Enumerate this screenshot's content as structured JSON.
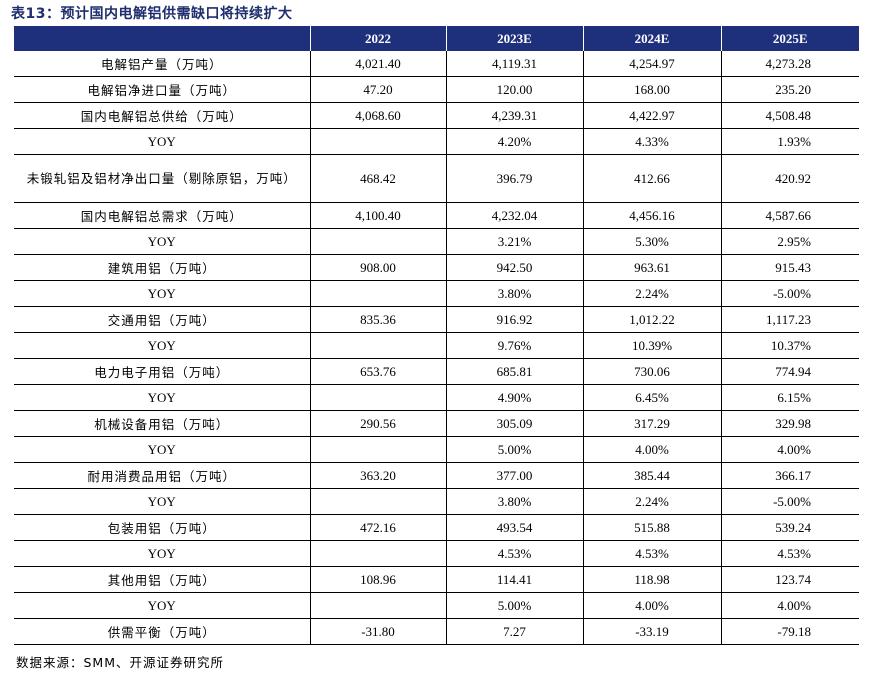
{
  "title": "表13：预计国内电解铝供需缺口将持续扩大",
  "table": {
    "headers": [
      "",
      "2022",
      "2023E",
      "2024E",
      "2025E"
    ],
    "rows": [
      [
        "电解铝产量（万吨）",
        "4,021.40",
        "4,119.31",
        "4,254.97",
        "4,273.28"
      ],
      [
        "电解铝净进口量（万吨）",
        "47.20",
        "120.00",
        "168.00",
        "235.20"
      ],
      [
        "国内电解铝总供给（万吨）",
        "4,068.60",
        "4,239.31",
        "4,422.97",
        "4,508.48"
      ],
      [
        "YOY",
        "",
        "4.20%",
        "4.33%",
        "1.93%"
      ],
      [
        "未锻轧铝及铝材净出口量（剔除原铝，万吨）",
        "468.42",
        "396.79",
        "412.66",
        "420.92"
      ],
      [
        "国内电解铝总需求（万吨）",
        "4,100.40",
        "4,232.04",
        "4,456.16",
        "4,587.66"
      ],
      [
        "YOY",
        "",
        "3.21%",
        "5.30%",
        "2.95%"
      ],
      [
        "建筑用铝（万吨）",
        "908.00",
        "942.50",
        "963.61",
        "915.43"
      ],
      [
        "YOY",
        "",
        "3.80%",
        "2.24%",
        "-5.00%"
      ],
      [
        "交通用铝（万吨）",
        "835.36",
        "916.92",
        "1,012.22",
        "1,117.23"
      ],
      [
        "YOY",
        "",
        "9.76%",
        "10.39%",
        "10.37%"
      ],
      [
        "电力电子用铝（万吨）",
        "653.76",
        "685.81",
        "730.06",
        "774.94"
      ],
      [
        "YOY",
        "",
        "4.90%",
        "6.45%",
        "6.15%"
      ],
      [
        "机械设备用铝（万吨）",
        "290.56",
        "305.09",
        "317.29",
        "329.98"
      ],
      [
        "YOY",
        "",
        "5.00%",
        "4.00%",
        "4.00%"
      ],
      [
        "耐用消费品用铝（万吨）",
        "363.20",
        "377.00",
        "385.44",
        "366.17"
      ],
      [
        "YOY",
        "",
        "3.80%",
        "2.24%",
        "-5.00%"
      ],
      [
        "包装用铝（万吨）",
        "472.16",
        "493.54",
        "515.88",
        "539.24"
      ],
      [
        "YOY",
        "",
        "4.53%",
        "4.53%",
        "4.53%"
      ],
      [
        "其他用铝（万吨）",
        "108.96",
        "114.41",
        "118.98",
        "123.74"
      ],
      [
        "YOY",
        "",
        "5.00%",
        "4.00%",
        "4.00%"
      ],
      [
        "供需平衡（万吨）",
        "-31.80",
        "7.27",
        "-33.19",
        "-79.18"
      ]
    ]
  },
  "source": "数据来源：SMM、开源证券研究所",
  "colors": {
    "header_bg": "#1e2f7c",
    "title": "#1f2e6e"
  }
}
